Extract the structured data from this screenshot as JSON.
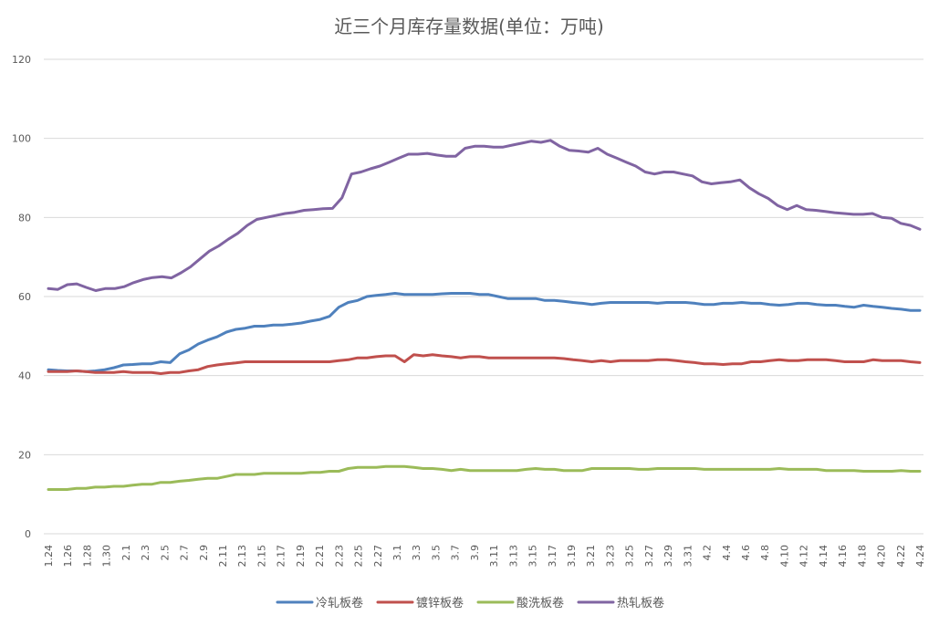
{
  "chart_data": {
    "type": "line",
    "title": "近三个月库存量数据(单位：万吨)",
    "xlabel": "",
    "ylabel": "",
    "ylim": [
      0,
      120
    ],
    "yticks": [
      0,
      20,
      40,
      60,
      80,
      100,
      120
    ],
    "grid": true,
    "legend_position": "bottom",
    "x_tick_labels": [
      "1.24",
      "1.26",
      "1.28",
      "1.30",
      "2.1",
      "2.3",
      "2.5",
      "2.7",
      "2.9",
      "2.11",
      "2.13",
      "2.15",
      "2.17",
      "2.19",
      "2.21",
      "2.23",
      "2.25",
      "2.27",
      "3.1",
      "3.3",
      "3.5",
      "3.7",
      "3.9",
      "3.11",
      "3.13",
      "3.15",
      "3.17",
      "3.19",
      "3.21",
      "3.23",
      "3.25",
      "3.27",
      "3.29",
      "3.31",
      "4.2",
      "4.4",
      "4.6",
      "4.8",
      "4.10",
      "4.12",
      "4.14",
      "4.16",
      "4.18",
      "4.20",
      "4.22",
      "4.24"
    ],
    "series": [
      {
        "name": "冷轧板卷",
        "color": "#4F81BD",
        "values": [
          41.5,
          41.3,
          41.2,
          41.2,
          41.0,
          41.2,
          41.5,
          42.0,
          42.7,
          42.8,
          43.0,
          43.0,
          43.5,
          43.3,
          45.5,
          46.5,
          48.0,
          49.0,
          49.8,
          51.0,
          51.7,
          52.0,
          52.5,
          52.5,
          52.8,
          52.8,
          53.0,
          53.3,
          53.8,
          54.2,
          55.0,
          57.3,
          58.5,
          59.0,
          60.0,
          60.3,
          60.5,
          60.8,
          60.5,
          60.5,
          60.5,
          60.5,
          60.7,
          60.8,
          60.8,
          60.8,
          60.5,
          60.5,
          60.0,
          59.5,
          59.5,
          59.5,
          59.5,
          59.0,
          59.0,
          58.8,
          58.5,
          58.3,
          58.0,
          58.3,
          58.5,
          58.5,
          58.5,
          58.5,
          58.5,
          58.3,
          58.5,
          58.5,
          58.5,
          58.3,
          58.0,
          58.0,
          58.3,
          58.3,
          58.5,
          58.3,
          58.3,
          58.0,
          57.8,
          58.0,
          58.3,
          58.3,
          58.0,
          57.8,
          57.8,
          57.5,
          57.3,
          57.8,
          57.5,
          57.3,
          57.0,
          56.8,
          56.5,
          56.5
        ]
      },
      {
        "name": "镀锌板卷",
        "color": "#C0504D",
        "values": [
          41.0,
          41.0,
          41.0,
          41.2,
          41.0,
          40.8,
          40.8,
          40.8,
          41.0,
          40.8,
          40.8,
          40.8,
          40.5,
          40.8,
          40.8,
          41.2,
          41.5,
          42.3,
          42.7,
          43.0,
          43.2,
          43.5,
          43.5,
          43.5,
          43.5,
          43.5,
          43.5,
          43.5,
          43.5,
          43.5,
          43.5,
          43.8,
          44.0,
          44.5,
          44.5,
          44.8,
          45.0,
          45.0,
          43.5,
          45.3,
          45.0,
          45.3,
          45.0,
          44.8,
          44.5,
          44.8,
          44.8,
          44.5,
          44.5,
          44.5,
          44.5,
          44.5,
          44.5,
          44.5,
          44.5,
          44.3,
          44.0,
          43.8,
          43.5,
          43.8,
          43.5,
          43.8,
          43.8,
          43.8,
          43.8,
          44.0,
          44.0,
          43.8,
          43.5,
          43.3,
          43.0,
          43.0,
          42.8,
          43.0,
          43.0,
          43.5,
          43.5,
          43.8,
          44.0,
          43.8,
          43.8,
          44.0,
          44.0,
          44.0,
          43.8,
          43.5,
          43.5,
          43.5,
          44.0,
          43.8,
          43.8,
          43.8,
          43.5,
          43.3
        ]
      },
      {
        "name": "酸洗板卷",
        "color": "#9BBB59",
        "values": [
          11.2,
          11.2,
          11.2,
          11.5,
          11.5,
          11.8,
          11.8,
          12.0,
          12.0,
          12.3,
          12.5,
          12.5,
          13.0,
          13.0,
          13.3,
          13.5,
          13.8,
          14.0,
          14.0,
          14.5,
          15.0,
          15.0,
          15.0,
          15.3,
          15.3,
          15.3,
          15.3,
          15.3,
          15.5,
          15.5,
          15.8,
          15.8,
          16.5,
          16.8,
          16.8,
          16.8,
          17.0,
          17.0,
          17.0,
          16.8,
          16.5,
          16.5,
          16.3,
          16.0,
          16.3,
          16.0,
          16.0,
          16.0,
          16.0,
          16.0,
          16.0,
          16.3,
          16.5,
          16.3,
          16.3,
          16.0,
          16.0,
          16.0,
          16.5,
          16.5,
          16.5,
          16.5,
          16.5,
          16.3,
          16.3,
          16.5,
          16.5,
          16.5,
          16.5,
          16.5,
          16.3,
          16.3,
          16.3,
          16.3,
          16.3,
          16.3,
          16.3,
          16.3,
          16.5,
          16.3,
          16.3,
          16.3,
          16.3,
          16.0,
          16.0,
          16.0,
          16.0,
          15.8,
          15.8,
          15.8,
          15.8,
          16.0,
          15.8,
          15.8
        ]
      },
      {
        "name": "热轧板卷",
        "color": "#8064A2",
        "values": [
          62.0,
          61.8,
          63.0,
          63.2,
          62.3,
          61.5,
          62.0,
          62.0,
          62.5,
          63.5,
          64.3,
          64.8,
          65.0,
          64.7,
          66.0,
          67.5,
          69.5,
          71.5,
          72.8,
          74.5,
          76.0,
          78.0,
          79.5,
          80.0,
          80.5,
          81.0,
          81.3,
          81.8,
          82.0,
          82.2,
          82.3,
          85.0,
          91.0,
          91.5,
          92.3,
          93.0,
          94.0,
          95.0,
          96.0,
          96.0,
          96.2,
          95.8,
          95.5,
          95.5,
          97.5,
          98.0,
          98.0,
          97.8,
          97.8,
          98.3,
          98.8,
          99.3,
          99.0,
          99.5,
          98.0,
          97.0,
          96.8,
          96.5,
          97.5,
          96.0,
          95.0,
          94.0,
          93.0,
          91.5,
          91.0,
          91.5,
          91.5,
          91.0,
          90.5,
          89.0,
          88.5,
          88.8,
          89.0,
          89.5,
          87.5,
          86.0,
          84.8,
          83.0,
          82.0,
          83.0,
          82.0,
          81.8,
          81.5,
          81.2,
          81.0,
          80.8,
          80.8,
          81.0,
          80.0,
          79.8,
          78.5,
          78.0,
          77.0
        ]
      }
    ]
  }
}
